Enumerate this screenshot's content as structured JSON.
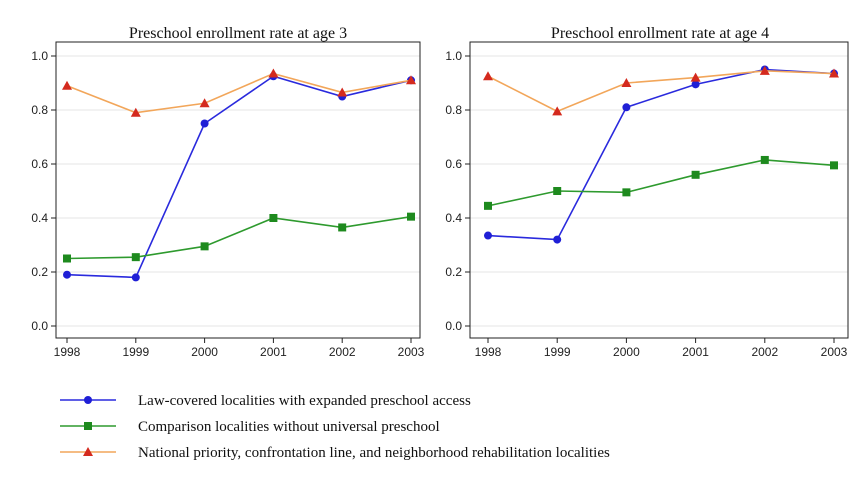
{
  "chart_data": [
    {
      "type": "line",
      "title": "Preschool enrollment rate at age 3",
      "x": [
        1998,
        1999,
        2000,
        2001,
        2002,
        2003
      ],
      "ylim": [
        0,
        1
      ],
      "yticks": [
        "0.0",
        "0.2",
        "0.4",
        "0.6",
        "0.8",
        "1.0"
      ],
      "xticks": [
        "1998",
        "1999",
        "2000",
        "2001",
        "2002",
        "2003"
      ],
      "grid": true,
      "series": [
        {
          "key": "law",
          "values": [
            0.19,
            0.18,
            0.75,
            0.925,
            0.85,
            0.91
          ]
        },
        {
          "key": "comparison",
          "values": [
            0.25,
            0.255,
            0.295,
            0.4,
            0.365,
            0.405
          ]
        },
        {
          "key": "priority",
          "values": [
            0.89,
            0.79,
            0.825,
            0.935,
            0.865,
            0.91
          ]
        }
      ]
    },
    {
      "type": "line",
      "title": "Preschool enrollment rate at age 4",
      "x": [
        1998,
        1999,
        2000,
        2001,
        2002,
        2003
      ],
      "ylim": [
        0,
        1
      ],
      "yticks": [
        "0.0",
        "0.2",
        "0.4",
        "0.6",
        "0.8",
        "1.0"
      ],
      "xticks": [
        "1998",
        "1999",
        "2000",
        "2001",
        "2002",
        "2003"
      ],
      "grid": true,
      "series": [
        {
          "key": "law",
          "values": [
            0.335,
            0.32,
            0.81,
            0.895,
            0.95,
            0.935
          ]
        },
        {
          "key": "comparison",
          "values": [
            0.445,
            0.5,
            0.495,
            0.56,
            0.615,
            0.595
          ]
        },
        {
          "key": "priority",
          "values": [
            0.925,
            0.795,
            0.9,
            0.92,
            0.945,
            0.935
          ]
        }
      ]
    }
  ],
  "legend": {
    "placement": "bottom",
    "entries": [
      {
        "key": "law",
        "label": "Law-covered localities with expanded preschool access",
        "color": "#2a2add",
        "marker": "circle"
      },
      {
        "key": "comparison",
        "label": "Comparison localities without universal preschool",
        "color": "#2e9a2e",
        "marker": "square"
      },
      {
        "key": "priority",
        "label": "National priority, confrontation line, and neighborhood rehabilitation localities",
        "color": "#f2a65a",
        "marker": "triangle"
      }
    ]
  },
  "colors": {
    "law_marker": "#1f1fd6",
    "comparison_marker": "#1e8a1e",
    "priority_marker": "#d42a1e"
  }
}
